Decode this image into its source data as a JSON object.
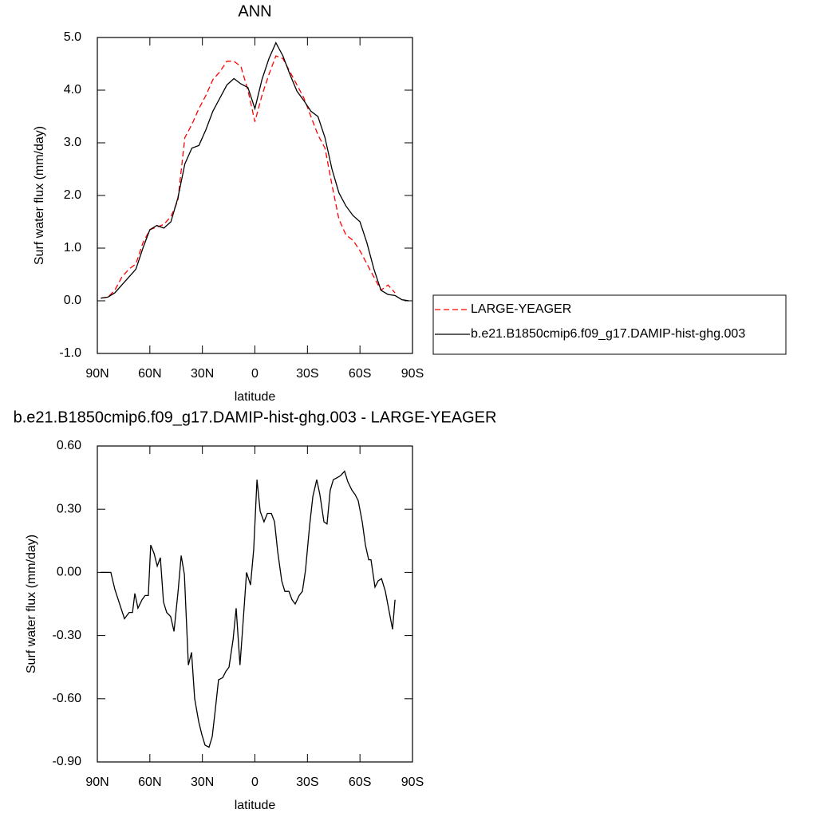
{
  "chart_data": [
    {
      "type": "line",
      "title": "ANN",
      "xlabel": "latitude",
      "ylabel": "Surf water flux (mm/day)",
      "x": [
        88,
        84,
        80,
        76,
        72,
        68,
        64,
        60,
        56,
        52,
        48,
        44,
        40,
        36,
        32,
        28,
        24,
        20,
        16,
        12,
        8,
        4,
        0,
        -4,
        -8,
        -12,
        -16,
        -20,
        -24,
        -28,
        -32,
        -36,
        -40,
        -44,
        -48,
        -52,
        -56,
        -60,
        -64,
        -68,
        -72,
        -76,
        -80,
        -84,
        -88
      ],
      "xlim": [
        90,
        -90
      ],
      "xticks": [
        {
          "value": 90,
          "label": "90N"
        },
        {
          "value": 60,
          "label": "60N"
        },
        {
          "value": 30,
          "label": "30N"
        },
        0,
        {
          "value": -30,
          "label": "30S"
        },
        {
          "value": -60,
          "label": "60S"
        },
        {
          "value": -90,
          "label": "90S"
        }
      ],
      "ylim": [
        -1,
        5
      ],
      "yticks": [
        {
          "value": -1,
          "label": "-1.0"
        },
        {
          "value": 0,
          "label": "0.0"
        },
        {
          "value": 1,
          "label": "1.0"
        },
        {
          "value": 2,
          "label": "2.0"
        },
        {
          "value": 3,
          "label": "3.0"
        },
        {
          "value": 4,
          "label": "4.0"
        },
        {
          "value": 5,
          "label": "5.0"
        }
      ],
      "legend": "right",
      "series": [
        {
          "name": "LARGE-YEAGER",
          "color": "#ff0000",
          "dash": true,
          "values": [
            0.05,
            0.07,
            0.2,
            0.45,
            0.6,
            0.7,
            1.1,
            1.35,
            1.4,
            1.45,
            1.6,
            1.9,
            3.1,
            3.35,
            3.65,
            3.9,
            4.2,
            4.35,
            4.55,
            4.55,
            4.45,
            4.0,
            3.4,
            3.9,
            4.3,
            4.65,
            4.6,
            4.35,
            4.1,
            3.85,
            3.5,
            3.15,
            2.9,
            2.2,
            1.55,
            1.25,
            1.15,
            0.95,
            0.7,
            0.45,
            0.2,
            0.3,
            0.15,
            null,
            null
          ]
        },
        {
          "name": "b.e21.B1850cmip6.f09_g17.DAMIP-hist-ghg.003",
          "color": "#000000",
          "dash": false,
          "values": [
            0.05,
            0.07,
            0.15,
            0.3,
            0.45,
            0.6,
            1.0,
            1.35,
            1.43,
            1.38,
            1.5,
            1.95,
            2.6,
            2.9,
            2.95,
            3.25,
            3.6,
            3.85,
            4.1,
            4.22,
            4.12,
            4.05,
            3.65,
            4.2,
            4.6,
            4.9,
            4.65,
            4.3,
            3.98,
            3.8,
            3.6,
            3.5,
            3.1,
            2.5,
            2.05,
            1.8,
            1.62,
            1.5,
            1.1,
            0.6,
            0.2,
            0.12,
            0.1,
            0.02,
            0.0
          ]
        }
      ]
    },
    {
      "type": "line",
      "title": "b.e21.B1850cmip6.f09_g17.DAMIP-hist-ghg.003 - LARGE-YEAGER",
      "xlabel": "latitude",
      "ylabel": "Surf water flux (mm/day)",
      "x": [
        88.2,
        82.3,
        80.0,
        74.5,
        71.8,
        69.9,
        68.6,
        66.8,
        64.5,
        62.7,
        60.9,
        59.5,
        57.6,
        55.8,
        54.0,
        52.2,
        50.4,
        48.1,
        46.2,
        43.9,
        42.1,
        40.3,
        38.0,
        36.2,
        34.4,
        32.1,
        30.3,
        28.5,
        26.2,
        24.4,
        22.6,
        20.8,
        18.4,
        16.6,
        14.8,
        12.5,
        10.7,
        8.5,
        6.6,
        4.8,
        2.5,
        0.7,
        -1.2,
        -3.0,
        -5.2,
        -7.1,
        -9.4,
        -11.2,
        -13.0,
        -15.3,
        -17.1,
        -19.4,
        -21.2,
        -23.0,
        -25.3,
        -27.1,
        -28.9,
        -31.2,
        -33.1,
        -35.3,
        -37.1,
        -39.4,
        -41.2,
        -43.0,
        -44.8,
        -47.1,
        -49.0,
        -51.2,
        -53.1,
        -55.4,
        -57.2,
        -59.0,
        -61.3,
        -63.1,
        -65.0,
        -66.3,
        -68.6,
        -70.4,
        -72.3,
        -74.5,
        -76.8,
        -78.6,
        -80.0
      ],
      "values": [
        0.0,
        0.0,
        -0.08,
        -0.22,
        -0.19,
        -0.19,
        -0.1,
        -0.17,
        -0.13,
        -0.11,
        -0.11,
        0.13,
        0.09,
        0.03,
        0.07,
        -0.14,
        -0.19,
        -0.21,
        -0.28,
        -0.09,
        0.08,
        -0.01,
        -0.44,
        -0.38,
        -0.6,
        -0.71,
        -0.77,
        -0.82,
        -0.83,
        -0.78,
        -0.65,
        -0.51,
        -0.5,
        -0.47,
        -0.45,
        -0.32,
        -0.17,
        -0.44,
        -0.22,
        0.0,
        -0.06,
        0.11,
        0.44,
        0.29,
        0.24,
        0.28,
        0.28,
        0.24,
        0.1,
        -0.04,
        -0.09,
        -0.09,
        -0.13,
        -0.15,
        -0.11,
        -0.09,
        0.01,
        0.22,
        0.36,
        0.44,
        0.37,
        0.24,
        0.23,
        0.39,
        0.44,
        0.45,
        0.46,
        0.48,
        0.43,
        0.39,
        0.37,
        0.34,
        0.24,
        0.13,
        0.06,
        0.06,
        -0.07,
        -0.04,
        -0.03,
        -0.09,
        -0.19,
        -0.27,
        -0.13
      ],
      "color": "#000000",
      "xlim": [
        90,
        -90
      ],
      "xticks": [
        {
          "value": 90,
          "label": "90N"
        },
        {
          "value": 60,
          "label": "60N"
        },
        {
          "value": 30,
          "label": "30N"
        },
        0,
        {
          "value": -30,
          "label": "30S"
        },
        {
          "value": -60,
          "label": "60S"
        },
        {
          "value": -90,
          "label": "90S"
        }
      ],
      "ylim": [
        -0.9,
        0.6
      ],
      "yticks": [
        {
          "value": -0.9,
          "label": "-0.90"
        },
        {
          "value": -0.6,
          "label": "-0.60"
        },
        {
          "value": -0.3,
          "label": "-0.30"
        },
        {
          "value": 0,
          "label": "0.00"
        },
        {
          "value": 0.3,
          "label": "0.30"
        },
        {
          "value": 0.6,
          "label": "0.60"
        }
      ]
    }
  ]
}
